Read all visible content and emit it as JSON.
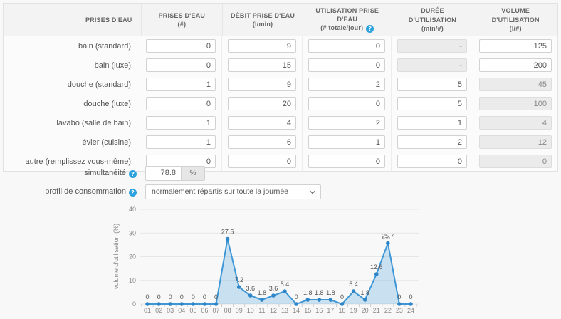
{
  "table": {
    "columns": [
      {
        "title": "PRISES D'EAU",
        "subtitle": "",
        "help": false
      },
      {
        "title": "PRISES D'EAU",
        "subtitle": "(#)",
        "help": false
      },
      {
        "title": "DÉBIT PRISE D'EAU",
        "subtitle": "(l/min)",
        "help": false
      },
      {
        "title": "UTILISATION PRISE D'EAU",
        "subtitle": "(# totale/jour)",
        "help": true
      },
      {
        "title": "DURÉE D'UTILISATION",
        "subtitle": "(min/#)",
        "help": false
      },
      {
        "title": "VOLUME D'UTILISATION",
        "subtitle": "(l/#)",
        "help": false
      }
    ],
    "fields": [
      "prises",
      "debit",
      "utilisation",
      "duree",
      "volume"
    ],
    "rows": [
      {
        "label": "bain (standard)",
        "values": [
          "0",
          "9",
          "0",
          "-",
          "125"
        ],
        "disabled": [
          false,
          false,
          false,
          true,
          false
        ]
      },
      {
        "label": "bain (luxe)",
        "values": [
          "0",
          "15",
          "0",
          "-",
          "200"
        ],
        "disabled": [
          false,
          false,
          false,
          true,
          false
        ]
      },
      {
        "label": "douche (standard)",
        "values": [
          "1",
          "9",
          "2",
          "5",
          "45"
        ],
        "disabled": [
          false,
          false,
          false,
          false,
          true
        ]
      },
      {
        "label": "douche (luxe)",
        "values": [
          "0",
          "20",
          "0",
          "5",
          "100"
        ],
        "disabled": [
          false,
          false,
          false,
          false,
          true
        ]
      },
      {
        "label": "lavabo (salle de bain)",
        "values": [
          "1",
          "4",
          "2",
          "1",
          "4"
        ],
        "disabled": [
          false,
          false,
          false,
          false,
          true
        ]
      },
      {
        "label": "évier (cuisine)",
        "values": [
          "1",
          "6",
          "1",
          "2",
          "12"
        ],
        "disabled": [
          false,
          false,
          false,
          false,
          true
        ]
      },
      {
        "label": "autre (remplissez vous-même)",
        "values": [
          "0",
          "0",
          "0",
          "0",
          "0"
        ],
        "disabled": [
          false,
          false,
          false,
          false,
          true
        ]
      }
    ]
  },
  "controls": {
    "simultaneite": {
      "label": "simultanéité",
      "value": "78.8",
      "unit": "%"
    },
    "profil": {
      "label": "profil de consommation",
      "value": "normalement répartis sur toute la journée"
    }
  },
  "chart_data": {
    "type": "area",
    "x": [
      "01",
      "02",
      "03",
      "04",
      "05",
      "06",
      "07",
      "08",
      "09",
      "10",
      "11",
      "12",
      "13",
      "14",
      "15",
      "16",
      "17",
      "18",
      "19",
      "20",
      "21",
      "22",
      "23",
      "24"
    ],
    "values": [
      0,
      0,
      0,
      0,
      0,
      0,
      0,
      27.5,
      7.2,
      3.6,
      1.8,
      3.6,
      5.4,
      0,
      1.8,
      1.8,
      1.8,
      0,
      5.4,
      1.8,
      12.6,
      25.7,
      0,
      0
    ],
    "title": "",
    "xlabel": "",
    "ylabel": "volume d'utilisation (%)",
    "ylim": [
      0,
      40
    ],
    "yticks": [
      0,
      10,
      20,
      30,
      40
    ],
    "grid": true,
    "legend": "none",
    "data_labels": true,
    "line_color": "#3d96d6",
    "marker_color": "#2e86c9",
    "fill_color": "rgba(61,150,214,0.25)"
  },
  "colors": {
    "help_icon": "#2ba2dd",
    "accent_blue": "#3d96d6",
    "grid_line": "#e6e6e6",
    "axis_text": "#888",
    "label_text": "#555"
  },
  "help_glyph": "?"
}
